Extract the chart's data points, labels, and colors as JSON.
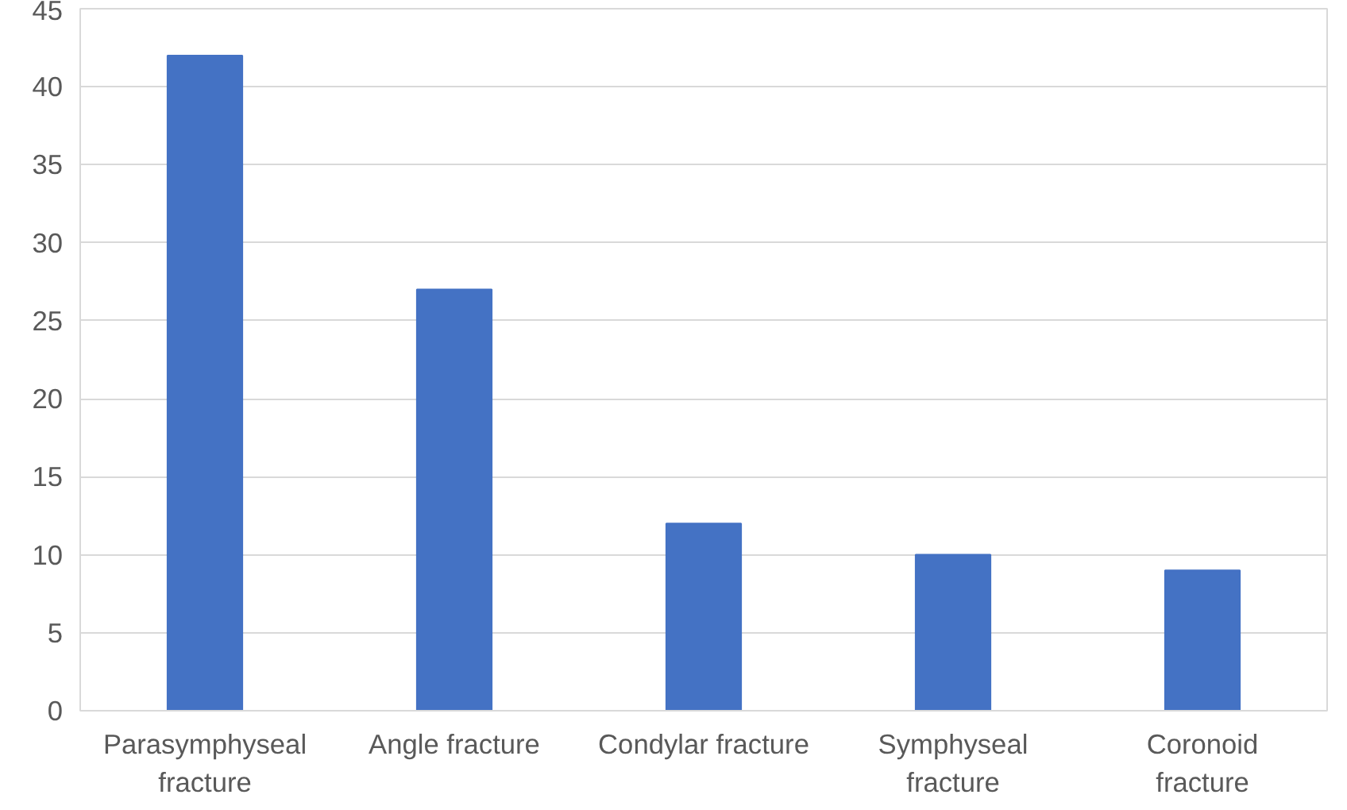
{
  "chart_data": {
    "type": "bar",
    "categories": [
      "Parasymphyseal\nfracture",
      "Angle fracture",
      "Condylar fracture",
      "Symphyseal\nfracture",
      "Coronoid\nfracture"
    ],
    "values": [
      42,
      27,
      12,
      10,
      9
    ],
    "color": "#4472c4",
    "ylim": [
      0,
      45
    ],
    "yticks": [
      0,
      5,
      10,
      15,
      20,
      25,
      30,
      35,
      40,
      45
    ],
    "grid": "y"
  }
}
